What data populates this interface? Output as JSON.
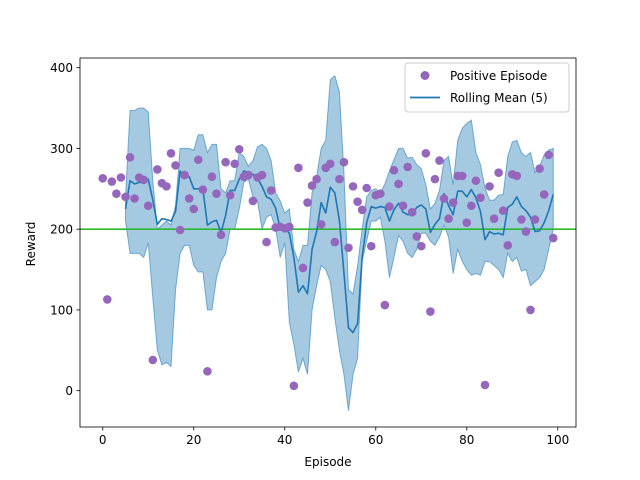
{
  "chart_data": {
    "type": "scatter",
    "title": "",
    "xlabel": "Episode",
    "ylabel": "Reward",
    "xlim": [
      -5,
      104
    ],
    "ylim": [
      -45,
      412
    ],
    "xticks": [
      0,
      20,
      40,
      60,
      80,
      100
    ],
    "yticks": [
      0,
      100,
      200,
      300,
      400
    ],
    "grid": false,
    "legend_position": "top-right",
    "threshold": {
      "value": 200,
      "color": "#2db92d"
    },
    "series": [
      {
        "name": "Positive Episode",
        "kind": "scatter",
        "color": "#9467bd",
        "x": [
          0,
          1,
          2,
          3,
          4,
          5,
          6,
          7,
          8,
          9,
          10,
          11,
          12,
          13,
          14,
          15,
          16,
          17,
          18,
          19,
          20,
          21,
          22,
          23,
          24,
          25,
          26,
          27,
          28,
          29,
          30,
          31,
          32,
          33,
          34,
          35,
          36,
          37,
          38,
          39,
          40,
          41,
          42,
          43,
          44,
          45,
          46,
          47,
          48,
          49,
          50,
          51,
          52,
          53,
          54,
          55,
          56,
          57,
          58,
          59,
          60,
          61,
          62,
          63,
          64,
          65,
          66,
          67,
          68,
          69,
          70,
          71,
          72,
          73,
          74,
          75,
          76,
          77,
          78,
          79,
          80,
          81,
          82,
          83,
          84,
          85,
          86,
          87,
          88,
          89,
          90,
          91,
          92,
          93,
          94,
          95,
          96,
          97,
          98,
          99
        ],
        "values": [
          263,
          113,
          259,
          244,
          264,
          240,
          289,
          238,
          264,
          261,
          229,
          38,
          274,
          257,
          253,
          294,
          279,
          199,
          267,
          238,
          225,
          286,
          249,
          24,
          265,
          244,
          193,
          283,
          242,
          281,
          299,
          265,
          267,
          235,
          264,
          267,
          184,
          248,
          202,
          203,
          201,
          203,
          6,
          276,
          152,
          233,
          254,
          262,
          206,
          276,
          281,
          184,
          262,
          283,
          177,
          253,
          234,
          224,
          251,
          179,
          242,
          244,
          106,
          228,
          273,
          256,
          229,
          277,
          221,
          191,
          179,
          294,
          98,
          262,
          285,
          238,
          213,
          233,
          266,
          266,
          208,
          229,
          260,
          239,
          7,
          253,
          213,
          270,
          223,
          180,
          268,
          266,
          212,
          197,
          100,
          212,
          275,
          243,
          292,
          189
        ]
      },
      {
        "name": "Rolling Mean (5)",
        "kind": "line",
        "color": "#1f77b4",
        "x": [
          5,
          6,
          7,
          8,
          9,
          10,
          11,
          12,
          13,
          14,
          15,
          16,
          17,
          18,
          19,
          20,
          21,
          22,
          23,
          24,
          25,
          26,
          27,
          28,
          29,
          30,
          31,
          32,
          33,
          34,
          35,
          36,
          37,
          38,
          39,
          40,
          41,
          42,
          43,
          44,
          45,
          46,
          47,
          48,
          49,
          50,
          51,
          52,
          53,
          54,
          55,
          56,
          57,
          58,
          59,
          60,
          61,
          62,
          63,
          64,
          65,
          66,
          67,
          68,
          69,
          70,
          71,
          72,
          73,
          74,
          75,
          76,
          77,
          78,
          79,
          80,
          81,
          82,
          83,
          84,
          85,
          86,
          87,
          88,
          89,
          90,
          91,
          92,
          93,
          94,
          95,
          96,
          97,
          98,
          99
        ],
        "values": [
          225,
          260,
          256,
          258,
          258,
          262,
          236,
          206,
          213,
          212,
          210,
          222,
          272,
          265,
          265,
          250,
          250,
          250,
          205,
          209,
          211,
          196,
          217,
          248,
          248,
          262,
          272,
          270,
          268,
          263,
          253,
          240,
          237,
          226,
          200,
          202,
          195,
          165,
          122,
          130,
          120,
          175,
          197,
          233,
          220,
          252,
          245,
          211,
          146,
          78,
          72,
          83,
          165,
          208,
          228,
          226,
          228,
          227,
          210,
          224,
          232,
          221,
          218,
          218,
          227,
          230,
          225,
          196,
          206,
          213,
          244,
          229,
          218,
          247,
          247,
          240,
          249,
          239,
          222,
          187,
          197,
          194,
          195,
          193,
          227,
          231,
          240,
          228,
          223,
          215,
          197,
          198,
          208,
          223,
          243
        ]
      },
      {
        "name": "",
        "kind": "band",
        "color": "#1f77b4",
        "x": [
          5,
          6,
          7,
          8,
          9,
          10,
          11,
          12,
          13,
          14,
          15,
          16,
          17,
          18,
          19,
          20,
          21,
          22,
          23,
          24,
          25,
          26,
          27,
          28,
          29,
          30,
          31,
          32,
          33,
          34,
          35,
          36,
          37,
          38,
          39,
          40,
          41,
          42,
          43,
          44,
          45,
          46,
          47,
          48,
          49,
          50,
          51,
          52,
          53,
          54,
          55,
          56,
          57,
          58,
          59,
          60,
          61,
          62,
          63,
          64,
          65,
          66,
          67,
          68,
          69,
          70,
          71,
          72,
          73,
          74,
          75,
          76,
          77,
          78,
          79,
          80,
          81,
          82,
          83,
          84,
          85,
          86,
          87,
          88,
          89,
          90,
          91,
          92,
          93,
          94,
          95,
          96,
          97,
          98,
          99
        ],
        "lower": [
          210,
          170,
          170,
          170,
          165,
          183,
          115,
          50,
          32,
          35,
          30,
          125,
          170,
          180,
          180,
          155,
          147,
          147,
          100,
          100,
          140,
          160,
          170,
          200,
          200,
          225,
          258,
          262,
          240,
          235,
          200,
          215,
          218,
          200,
          165,
          183,
          85,
          57,
          23,
          40,
          20,
          100,
          130,
          155,
          150,
          135,
          90,
          50,
          20,
          -25,
          20,
          40,
          160,
          186,
          210,
          210,
          215,
          185,
          140,
          165,
          192,
          185,
          170,
          165,
          175,
          195,
          195,
          185,
          180,
          190,
          205,
          190,
          145,
          175,
          160,
          150,
          143,
          145,
          143,
          160,
          160,
          155,
          150,
          140,
          170,
          160,
          165,
          148,
          150,
          130,
          135,
          140,
          150,
          175,
          200
        ],
        "upper": [
          240,
          347,
          347,
          350,
          350,
          345,
          260,
          200,
          205,
          210,
          205,
          230,
          300,
          300,
          300,
          298,
          317,
          317,
          295,
          305,
          305,
          250,
          245,
          260,
          260,
          295,
          290,
          278,
          285,
          302,
          305,
          300,
          285,
          245,
          235,
          220,
          225,
          175,
          160,
          180,
          180,
          245,
          265,
          300,
          310,
          385,
          390,
          370,
          270,
          125,
          120,
          155,
          200,
          240,
          248,
          250,
          245,
          256,
          272,
          286,
          300,
          300,
          288,
          289,
          280,
          275,
          255,
          225,
          232,
          248,
          285,
          290,
          255,
          310,
          325,
          331,
          335,
          295,
          280,
          251,
          236,
          236,
          242,
          243,
          290,
          308,
          310,
          295,
          290,
          295,
          270,
          278,
          292,
          298,
          300
        ]
      }
    ]
  }
}
